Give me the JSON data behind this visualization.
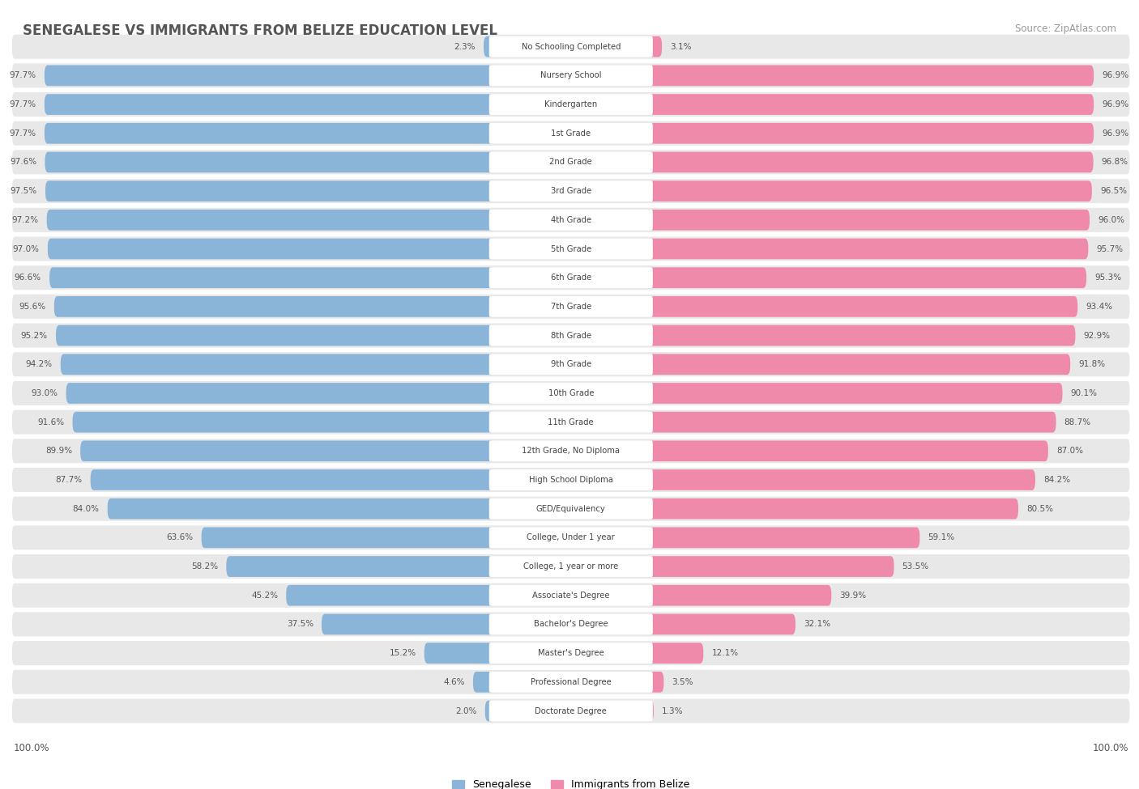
{
  "title": "SENEGALESE VS IMMIGRANTS FROM BELIZE EDUCATION LEVEL",
  "source": "Source: ZipAtlas.com",
  "categories": [
    "No Schooling Completed",
    "Nursery School",
    "Kindergarten",
    "1st Grade",
    "2nd Grade",
    "3rd Grade",
    "4th Grade",
    "5th Grade",
    "6th Grade",
    "7th Grade",
    "8th Grade",
    "9th Grade",
    "10th Grade",
    "11th Grade",
    "12th Grade, No Diploma",
    "High School Diploma",
    "GED/Equivalency",
    "College, Under 1 year",
    "College, 1 year or more",
    "Associate's Degree",
    "Bachelor's Degree",
    "Master's Degree",
    "Professional Degree",
    "Doctorate Degree"
  ],
  "senegalese": [
    2.3,
    97.7,
    97.7,
    97.7,
    97.6,
    97.5,
    97.2,
    97.0,
    96.6,
    95.6,
    95.2,
    94.2,
    93.0,
    91.6,
    89.9,
    87.7,
    84.0,
    63.6,
    58.2,
    45.2,
    37.5,
    15.2,
    4.6,
    2.0
  ],
  "belize": [
    3.1,
    96.9,
    96.9,
    96.9,
    96.8,
    96.5,
    96.0,
    95.7,
    95.3,
    93.4,
    92.9,
    91.8,
    90.1,
    88.7,
    87.0,
    84.2,
    80.5,
    59.1,
    53.5,
    39.9,
    32.1,
    12.1,
    3.5,
    1.3
  ],
  "blue_color": "#8ab4d8",
  "pink_color": "#f08aaa",
  "bg_color": "#ffffff",
  "row_bg": "#e8e8e8",
  "legend_label_blue": "Senegalese",
  "legend_label_pink": "Immigrants from Belize",
  "left_label": "100.0%",
  "right_label": "100.0%",
  "title_color": "#555555",
  "value_color": "#555555",
  "center_label_color": "#444444"
}
